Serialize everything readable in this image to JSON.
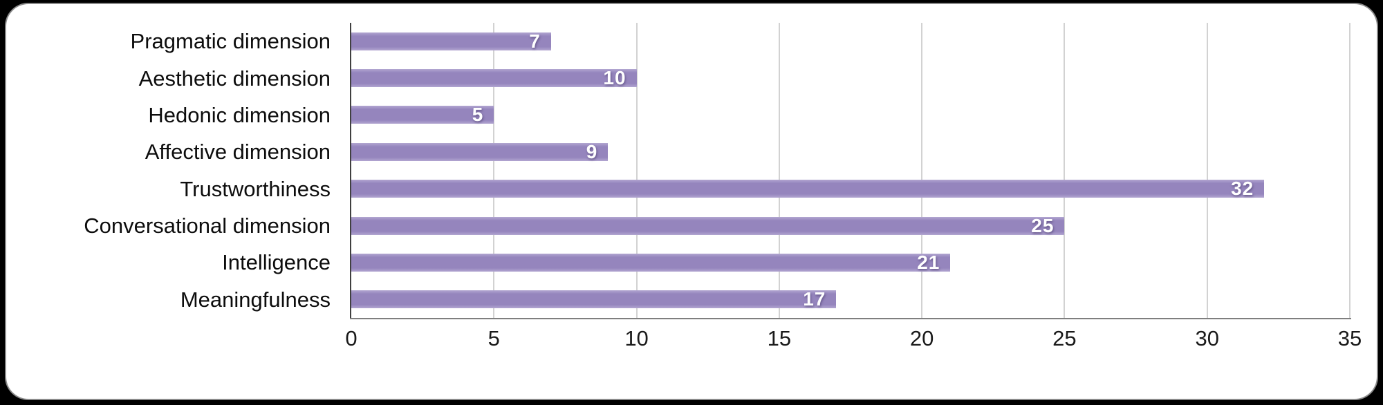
{
  "chart_data": {
    "type": "bar",
    "orientation": "horizontal",
    "title": "",
    "categories": [
      "Pragmatic dimension",
      "Aesthetic dimension",
      "Hedonic dimension",
      "Affective dimension",
      "Trustworthiness",
      "Conversational dimension",
      "Intelligence",
      "Meaningfulness"
    ],
    "values": [
      7,
      10,
      5,
      9,
      32,
      25,
      21,
      17
    ],
    "data_labels": [
      "7",
      "10",
      "5",
      "9",
      "32",
      "25",
      "21",
      "17"
    ],
    "xlim": [
      0,
      35
    ],
    "xticks": [
      "0",
      "5",
      "10",
      "15",
      "20",
      "25",
      "30",
      "35"
    ],
    "grid": true,
    "legend": false,
    "data_label_position": "inside-end",
    "colors": {
      "bar": "#9585bd",
      "bar_edge_highlight": "#b2a6d1",
      "value_label": "#ffffff",
      "gridline": "#d2d2d2",
      "x_axis_line": "#7f7f7f",
      "y_axis_line": "#404040",
      "tick_label": "#1a1a1a",
      "category_label": "#0d0d0d",
      "card_background": "#ffffff",
      "page_background": "#000000"
    }
  }
}
